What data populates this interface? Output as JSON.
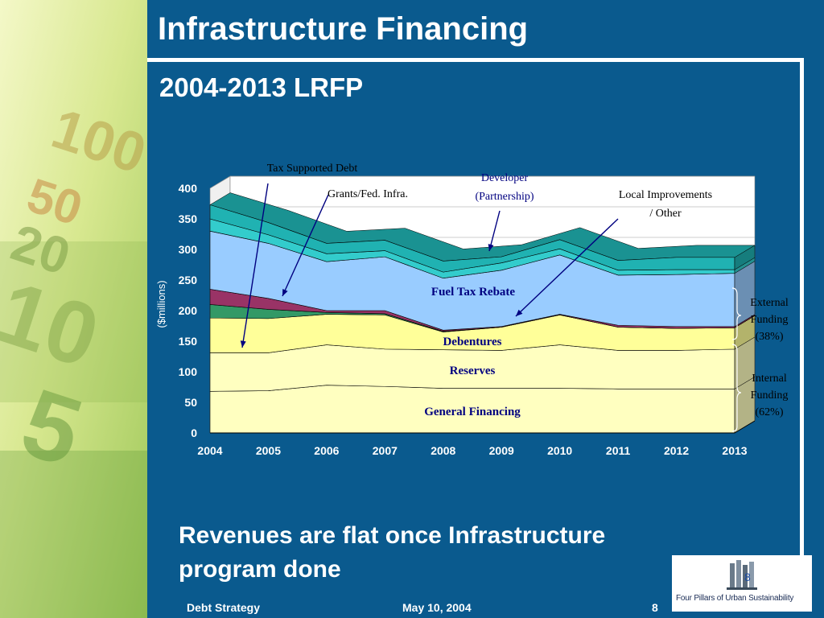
{
  "slide": {
    "title": "Infrastructure Financing",
    "subtitle": "2004-2013 LRFP",
    "message": "Revenues are flat once Infrastructure program done",
    "page_number": "8",
    "slide_number_marker": "8"
  },
  "footer": {
    "left": "Debt Strategy",
    "center": "May 10, 2004",
    "right": "8"
  },
  "logo": {
    "text": "Four Pillars of Urban Sustainability",
    "icon": "building-pillars-logo"
  },
  "background": {
    "image": "banknotes-decoration"
  },
  "colors": {
    "slide_bg": "#0a5a8e",
    "plot_bg": "#ffffff",
    "general_financing": "#ffffc0",
    "reserves": "#ffffc0",
    "debentures": "#ffff99",
    "grants": "#339966",
    "tax_debt": "#993366",
    "fuel_tax": "#99ccff",
    "developer": "#33cccc",
    "local_improvements": "#20b2b2",
    "label_text": "#000080"
  },
  "chart_data": {
    "type": "area",
    "stacked": true,
    "x": [
      "2004",
      "2005",
      "2006",
      "2007",
      "2008",
      "2009",
      "2010",
      "2011",
      "2012",
      "2013"
    ],
    "ylabel": "($millions)",
    "ylim": [
      0,
      400
    ],
    "yticks": [
      "0",
      "50",
      "100",
      "150",
      "200",
      "250",
      "300",
      "350",
      "400"
    ],
    "grid": true,
    "series": [
      {
        "name": "General Financing",
        "color": "#ffffc0",
        "values": [
          68,
          69,
          78,
          76,
          73,
          73,
          73,
          72,
          72,
          72
        ]
      },
      {
        "name": "Reserves",
        "color": "#ffffc0",
        "values": [
          63,
          62,
          66,
          61,
          63,
          62,
          71,
          63,
          63,
          65
        ]
      },
      {
        "name": "Debentures",
        "color": "#ffff99",
        "values": [
          57,
          56,
          50,
          56,
          29,
          38,
          49,
          38,
          36,
          35
        ]
      },
      {
        "name": "Grants/Fed. Infra.",
        "color": "#339966",
        "values": [
          22,
          15,
          3,
          2,
          1,
          0,
          0,
          0,
          0,
          0
        ]
      },
      {
        "name": "Tax Supported Debt",
        "color": "#993366",
        "values": [
          25,
          18,
          3,
          5,
          2,
          1,
          1,
          3,
          3,
          2
        ]
      },
      {
        "name": "Fuel Tax Rebate",
        "color": "#99ccff",
        "values": [
          95,
          90,
          80,
          88,
          85,
          92,
          97,
          82,
          85,
          87
        ]
      },
      {
        "name": "Developer (Partnership)",
        "color": "#33cccc",
        "values": [
          20,
          14,
          13,
          10,
          10,
          12,
          10,
          8,
          8,
          6
        ]
      },
      {
        "name": "Local Improvements / Other",
        "color": "#20b2b2",
        "values": [
          23,
          20,
          17,
          17,
          18,
          10,
          15,
          16,
          20,
          20
        ]
      }
    ],
    "annotations": {
      "tax_debt": "Tax Supported Debt",
      "grants": "Grants/Fed. Infra.",
      "developer_1": "Developer",
      "developer_2": "(Partnership)",
      "local_1": "Local Improvements",
      "local_2": "/ Other",
      "fuel_tax": "Fuel Tax Rebate",
      "debentures": "Debentures",
      "reserves": "Reserves",
      "general": "General Financing",
      "external_1": "External",
      "external_2": "Funding",
      "external_3": "(38%)",
      "internal_1": "Internal",
      "internal_2": "Funding",
      "internal_3": "(62%)"
    }
  }
}
